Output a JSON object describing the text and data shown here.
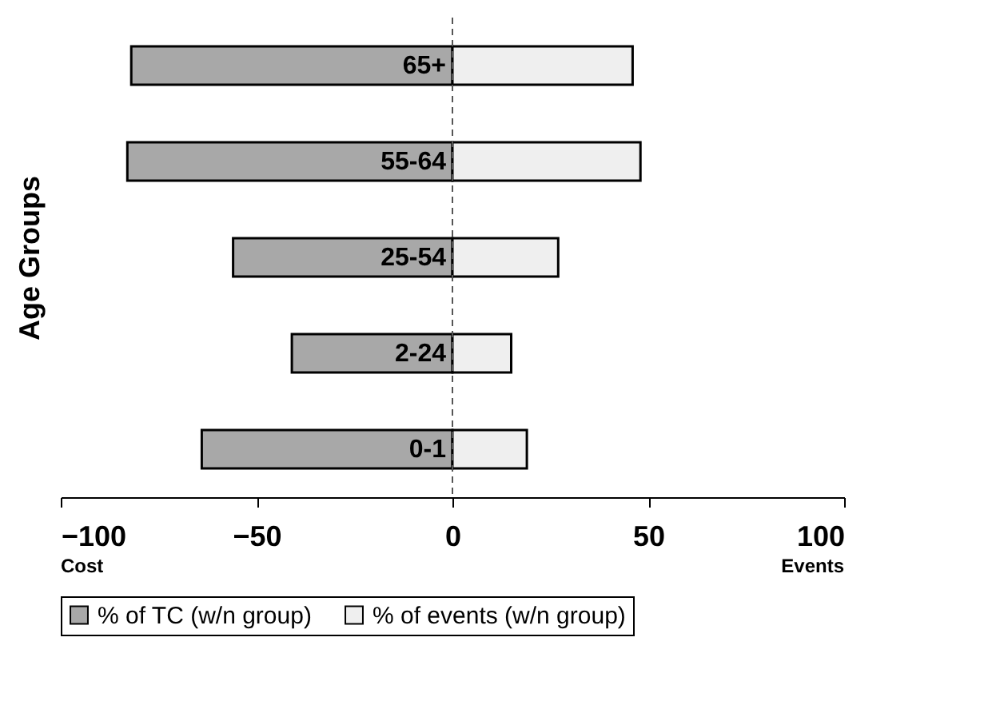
{
  "chart_data": {
    "type": "bar",
    "orientation": "horizontal",
    "ylabel": "Age Groups",
    "categories": [
      "65+",
      "55-64",
      "25-54",
      "2-24",
      "0-1"
    ],
    "series": [
      {
        "name": "% of  TC (w/n group)",
        "color": "#a8a8a8",
        "values": [
          -82,
          -83,
          -56,
          -41,
          -64
        ]
      },
      {
        "name": "% of events (w/n group)",
        "color": "#efefef",
        "values": [
          46,
          48,
          27,
          15,
          19
        ]
      }
    ],
    "xlim": [
      -100,
      100
    ],
    "xticks": [
      -100,
      -50,
      0,
      50,
      100
    ],
    "ref_lines": [
      {
        "axis": "x",
        "value": 0,
        "line_style": "dashed",
        "color": "#555555"
      }
    ],
    "annotations": [
      "Cost",
      "Events"
    ],
    "grid": false,
    "legend": "bottom",
    "stacked": true
  }
}
